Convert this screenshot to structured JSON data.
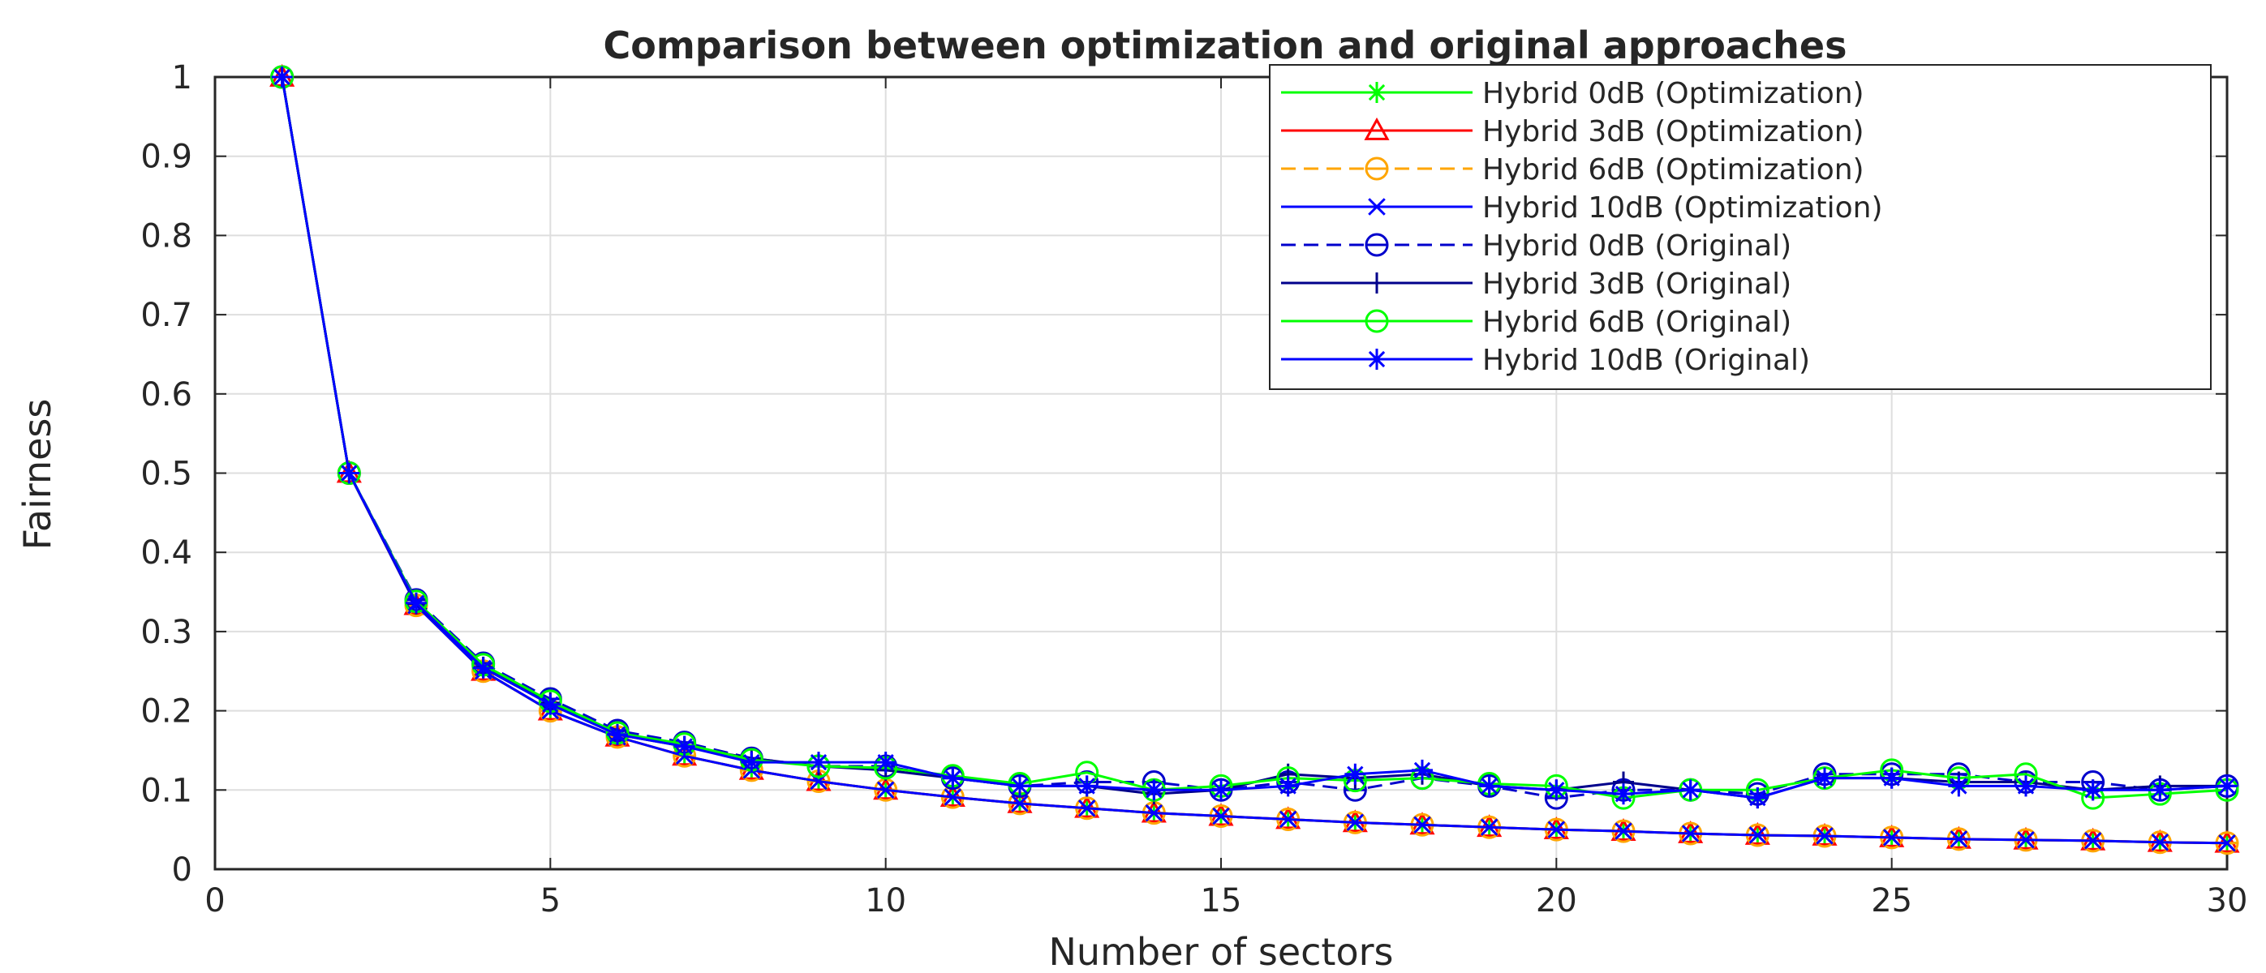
{
  "chart_data": {
    "type": "line",
    "title": "Comparison between optimization and original approaches",
    "xlabel": "Number of sectors",
    "ylabel": "Fairness",
    "xlim": [
      0,
      30
    ],
    "ylim": [
      0,
      1
    ],
    "xticks": [
      0,
      5,
      10,
      15,
      20,
      25,
      30
    ],
    "yticks": [
      0,
      0.1,
      0.2,
      0.3,
      0.4,
      0.5,
      0.6,
      0.7,
      0.8,
      0.9,
      1
    ],
    "grid": true,
    "legend_position": "top-right",
    "x": [
      1,
      2,
      3,
      4,
      5,
      6,
      7,
      8,
      9,
      10,
      11,
      12,
      13,
      14,
      15,
      16,
      17,
      18,
      19,
      20,
      21,
      22,
      23,
      24,
      25,
      26,
      27,
      28,
      29,
      30
    ],
    "series": [
      {
        "name": "Hybrid 0dB (Optimization)",
        "color": "#00ff00",
        "marker": "asterisk",
        "dash": "solid",
        "values": [
          1,
          0.5,
          0.333,
          0.25,
          0.2,
          0.167,
          0.143,
          0.125,
          0.111,
          0.1,
          0.091,
          0.083,
          0.077,
          0.071,
          0.067,
          0.063,
          0.059,
          0.056,
          0.053,
          0.05,
          0.048,
          0.045,
          0.043,
          0.042,
          0.04,
          0.038,
          0.037,
          0.036,
          0.034,
          0.033
        ]
      },
      {
        "name": "Hybrid 3dB (Optimization)",
        "color": "#ff0000",
        "marker": "triangle",
        "dash": "solid",
        "values": [
          1,
          0.5,
          0.333,
          0.25,
          0.2,
          0.167,
          0.143,
          0.125,
          0.111,
          0.1,
          0.091,
          0.083,
          0.077,
          0.071,
          0.067,
          0.063,
          0.059,
          0.056,
          0.053,
          0.05,
          0.048,
          0.045,
          0.043,
          0.042,
          0.04,
          0.038,
          0.037,
          0.036,
          0.034,
          0.033
        ]
      },
      {
        "name": "Hybrid 6dB (Optimization)",
        "color": "#ffa500",
        "marker": "circle-bar",
        "dash": "dashed",
        "values": [
          1,
          0.5,
          0.333,
          0.25,
          0.2,
          0.167,
          0.143,
          0.125,
          0.111,
          0.1,
          0.091,
          0.083,
          0.077,
          0.071,
          0.067,
          0.063,
          0.059,
          0.056,
          0.053,
          0.05,
          0.048,
          0.045,
          0.043,
          0.042,
          0.04,
          0.038,
          0.037,
          0.036,
          0.034,
          0.033
        ]
      },
      {
        "name": "Hybrid 10dB (Optimization)",
        "color": "#0000ff",
        "marker": "x",
        "dash": "solid",
        "values": [
          1,
          0.5,
          0.333,
          0.25,
          0.2,
          0.167,
          0.143,
          0.125,
          0.111,
          0.1,
          0.091,
          0.083,
          0.077,
          0.071,
          0.067,
          0.063,
          0.059,
          0.056,
          0.053,
          0.05,
          0.048,
          0.045,
          0.043,
          0.042,
          0.04,
          0.038,
          0.037,
          0.036,
          0.034,
          0.033
        ]
      },
      {
        "name": "Hybrid 0dB (Original)",
        "color": "#0000cc",
        "marker": "circle-bar",
        "dash": "dashed",
        "values": [
          1,
          0.5,
          0.34,
          0.26,
          0.215,
          0.175,
          0.16,
          0.14,
          0.13,
          0.13,
          0.115,
          0.105,
          0.11,
          0.11,
          0.1,
          0.11,
          0.1,
          0.115,
          0.105,
          0.09,
          0.1,
          0.1,
          0.095,
          0.12,
          0.12,
          0.12,
          0.11,
          0.11,
          0.1,
          0.105
        ]
      },
      {
        "name": "Hybrid 3dB (Original)",
        "color": "#00008b",
        "marker": "plus",
        "dash": "solid",
        "values": [
          1,
          0.5,
          0.335,
          0.255,
          0.21,
          0.17,
          0.155,
          0.14,
          0.13,
          0.125,
          0.115,
          0.105,
          0.105,
          0.095,
          0.1,
          0.12,
          0.115,
          0.12,
          0.105,
          0.1,
          0.11,
          0.1,
          0.09,
          0.115,
          0.115,
          0.11,
          0.11,
          0.1,
          0.105,
          0.105
        ]
      },
      {
        "name": "Hybrid 6dB (Original)",
        "color": "#00ff00",
        "marker": "circle",
        "dash": "solid",
        "values": [
          1,
          0.5,
          0.338,
          0.258,
          0.212,
          0.172,
          0.158,
          0.138,
          0.13,
          0.128,
          0.118,
          0.108,
          0.122,
          0.1,
          0.105,
          0.115,
          0.112,
          0.115,
          0.108,
          0.105,
          0.09,
          0.1,
          0.1,
          0.115,
          0.125,
          0.115,
          0.12,
          0.09,
          0.095,
          0.1
        ]
      },
      {
        "name": "Hybrid 10dB (Original)",
        "color": "#0000ff",
        "marker": "asterisk",
        "dash": "solid",
        "values": [
          1,
          0.5,
          0.336,
          0.254,
          0.208,
          0.17,
          0.155,
          0.135,
          0.135,
          0.135,
          0.115,
          0.105,
          0.105,
          0.1,
          0.1,
          0.105,
          0.12,
          0.125,
          0.105,
          0.1,
          0.095,
          0.1,
          0.09,
          0.115,
          0.115,
          0.105,
          0.105,
          0.1,
          0.1,
          0.105
        ]
      }
    ]
  }
}
